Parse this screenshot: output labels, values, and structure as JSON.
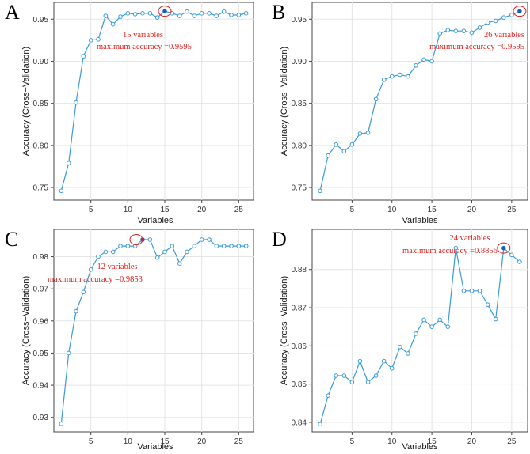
{
  "chart_data": [
    {
      "panel": "A",
      "type": "line",
      "xlabel": "Variables",
      "ylabel": "Accuracy (Cross−Validation)",
      "xlim": [
        0,
        27
      ],
      "ylim": [
        0.735,
        0.97
      ],
      "xticks": [
        5,
        10,
        15,
        20,
        25
      ],
      "yticks": [
        0.75,
        0.8,
        0.85,
        0.9,
        0.95
      ],
      "ytick_labels": [
        "0.75",
        "0.80",
        "0.85",
        "0.90",
        "0.95"
      ],
      "grid": true,
      "series": [
        {
          "x": [
            1,
            2,
            3,
            4,
            5,
            6,
            7,
            8,
            9,
            10,
            11,
            12,
            13,
            14,
            15,
            16,
            17,
            18,
            19,
            20,
            21,
            22,
            23,
            24,
            25,
            26
          ],
          "values": [
            0.746,
            0.779,
            0.851,
            0.906,
            0.925,
            0.926,
            0.954,
            0.944,
            0.953,
            0.957,
            0.956,
            0.957,
            0.957,
            0.952,
            0.9595,
            0.957,
            0.954,
            0.959,
            0.954,
            0.957,
            0.957,
            0.954,
            0.959,
            0.955,
            0.955,
            0.957
          ]
        }
      ],
      "highlight": {
        "x": 15,
        "y": 0.9595
      },
      "annotations": [
        "15 variables",
        "maximum accuracy =0.9595"
      ]
    },
    {
      "panel": "B",
      "type": "line",
      "xlabel": "Variables",
      "ylabel": "Accuracy (Cross−Validation)",
      "xlim": [
        0,
        27
      ],
      "ylim": [
        0.735,
        0.97
      ],
      "xticks": [
        5,
        10,
        15,
        20,
        25
      ],
      "yticks": [
        0.75,
        0.8,
        0.85,
        0.9,
        0.95
      ],
      "ytick_labels": [
        "0.75",
        "0.80",
        "0.85",
        "0.90",
        "0.95"
      ],
      "grid": true,
      "series": [
        {
          "x": [
            1,
            2,
            3,
            4,
            5,
            6,
            7,
            8,
            9,
            10,
            11,
            12,
            13,
            14,
            15,
            16,
            17,
            18,
            19,
            20,
            21,
            22,
            23,
            24,
            25,
            26
          ],
          "values": [
            0.746,
            0.788,
            0.801,
            0.793,
            0.801,
            0.814,
            0.815,
            0.855,
            0.878,
            0.882,
            0.884,
            0.882,
            0.895,
            0.902,
            0.9,
            0.933,
            0.937,
            0.936,
            0.936,
            0.934,
            0.94,
            0.946,
            0.948,
            0.952,
            0.955,
            0.9595
          ]
        }
      ],
      "highlight": {
        "x": 26,
        "y": 0.9595
      },
      "annotations": [
        "26 variables",
        "maximum accuracy =0.9595"
      ]
    },
    {
      "panel": "C",
      "type": "line",
      "xlabel": "Variables",
      "ylabel": "Accuracy (Cross−Validation)",
      "xlim": [
        0,
        27
      ],
      "ylim": [
        0.9255,
        0.9885
      ],
      "xticks": [
        5,
        10,
        15,
        20,
        25
      ],
      "yticks": [
        0.93,
        0.94,
        0.95,
        0.96,
        0.97,
        0.98
      ],
      "ytick_labels": [
        "0.93",
        "0.94",
        "0.95",
        "0.96",
        "0.97",
        "0.98"
      ],
      "grid": true,
      "series": [
        {
          "x": [
            1,
            2,
            3,
            4,
            5,
            6,
            7,
            8,
            9,
            10,
            11,
            12,
            13,
            14,
            15,
            16,
            17,
            18,
            19,
            20,
            21,
            22,
            23,
            24,
            25,
            26
          ],
          "values": [
            0.928,
            0.95,
            0.963,
            0.969,
            0.976,
            0.98,
            0.9815,
            0.9815,
            0.9833,
            0.9833,
            0.9833,
            0.9853,
            0.9853,
            0.9797,
            0.9815,
            0.9833,
            0.9779,
            0.9815,
            0.9833,
            0.9853,
            0.9853,
            0.9833,
            0.9833,
            0.9833,
            0.9833,
            0.9833
          ]
        }
      ],
      "highlight": {
        "x": 12,
        "y": 0.9853
      },
      "annotations": [
        "12 variables",
        "maximum accuracy =0.9853"
      ]
    },
    {
      "panel": "D",
      "type": "line",
      "xlabel": "Variables",
      "ylabel": "Accuracy (Cross−Validation)",
      "xlim": [
        0,
        27
      ],
      "ylim": [
        0.8375,
        0.8905
      ],
      "xticks": [
        5,
        10,
        15,
        20,
        25
      ],
      "yticks": [
        0.84,
        0.85,
        0.86,
        0.87,
        0.88
      ],
      "ytick_labels": [
        "0.84",
        "0.85",
        "0.86",
        "0.87",
        "0.88"
      ],
      "grid": true,
      "series": [
        {
          "x": [
            1,
            2,
            3,
            4,
            5,
            6,
            7,
            8,
            9,
            10,
            11,
            12,
            13,
            14,
            15,
            16,
            17,
            18,
            19,
            20,
            21,
            22,
            23,
            24,
            25,
            26
          ],
          "values": [
            0.8395,
            0.847,
            0.8522,
            0.8522,
            0.8505,
            0.856,
            0.8505,
            0.8522,
            0.856,
            0.8541,
            0.8597,
            0.858,
            0.8632,
            0.8668,
            0.865,
            0.8668,
            0.865,
            0.8856,
            0.8744,
            0.8744,
            0.8744,
            0.8708,
            0.867,
            0.8856,
            0.8838,
            0.882
          ]
        }
      ],
      "highlight": {
        "x": 24,
        "y": 0.8856
      },
      "annotations": [
        "24 variables",
        "maximum accuracy =0.8856"
      ]
    }
  ],
  "colors": {
    "line": "#3a9ad9",
    "marker_edge": "#3a9ad9",
    "highlight_dot": "#1a5fb4",
    "annotation": "#e0201c",
    "grid": "#e5e5e5",
    "frame": "#444444"
  }
}
